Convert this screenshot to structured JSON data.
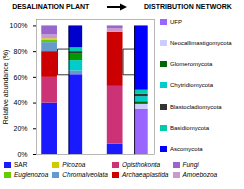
{
  "chart_data": {
    "type": "bar",
    "stacked": true,
    "ylabel": "Relative abundance (%)",
    "ylim": [
      0,
      105
    ],
    "yticks": [
      {
        "value": 0,
        "label": "0%"
      },
      {
        "value": 20,
        "label": "20%"
      },
      {
        "value": 40,
        "label": "40%"
      },
      {
        "value": 60,
        "label": "60%"
      },
      {
        "value": 80,
        "label": "80%"
      },
      {
        "value": 100,
        "label": "100%"
      }
    ],
    "tick_labels": "y",
    "groups": [
      {
        "title": "DESALINATION PLANT",
        "bars": [
          {
            "values": [
              40,
              20,
              20,
              7,
              2,
              1,
              3,
              7
            ],
            "colors": [
              "#1a1aff",
              "#cc3377",
              "#cc0000",
              "#6699cc",
              "#66cc00",
              "#cccc00",
              "#cc99cc",
              "#9966cc"
            ]
          },
          {
            "values": [
              62,
              3,
              8,
              5,
              2,
              3,
              17
            ],
            "colors": [
              "#1a1aff",
              "#6699cc",
              "#00cccc",
              "#009900",
              "#333333",
              "#00ccaa",
              "#0000cc"
            ]
          }
        ],
        "bracket": {
          "y": [
            62,
            82
          ],
          "span": [
            0,
            100
          ]
        }
      },
      {
        "title": "DISTRIBUTION NETWORK",
        "bars": [
          {
            "values": [
              8,
              45,
              42,
              3,
              2
            ],
            "colors": [
              "#1a1aff",
              "#cc3377",
              "#cc0000",
              "#cc99cc",
              "#9966cc"
            ]
          },
          {
            "values": [
              35,
              4,
              2,
              4,
              2,
              3,
              50
            ],
            "colors": [
              "#9966ff",
              "#ccccff",
              "#006600",
              "#00cccc",
              "#333333",
              "#00ccaa",
              "#0000ff"
            ]
          }
        ],
        "bracket": {
          "y": [
            62,
            82
          ],
          "span": [
            0,
            100
          ]
        }
      }
    ],
    "fungi_legend": [
      {
        "label": "Ascomycota",
        "color": "#0000ff"
      },
      {
        "label": "Basidiomycota",
        "color": "#00ccaa"
      },
      {
        "label": "Blastocladiomycota",
        "color": "#333333"
      },
      {
        "label": "Chytridiomycota",
        "color": "#00cccc"
      },
      {
        "label": "Glomeromycota",
        "color": "#006600"
      },
      {
        "label": "Neocallimastigomycota",
        "color": "#ccccff"
      },
      {
        "label": "UFP",
        "color": "#9966ff"
      }
    ],
    "legend_items": [
      {
        "label": "SAR",
        "color": "#1a1aff",
        "italic": false
      },
      {
        "label": "Picozoa",
        "color": "#cccc00",
        "italic": true
      },
      {
        "label": "Opisthokonta",
        "color": "#cc3377",
        "italic": true
      },
      {
        "label": "Fungi",
        "color": "#9966cc",
        "italic": true
      },
      {
        "label": "Euglenozoa",
        "color": "#66cc00",
        "italic": true
      },
      {
        "label": "Chromalveolata",
        "color": "#6699cc",
        "italic": true
      },
      {
        "label": "Archaeaplastida",
        "color": "#cc0000",
        "italic": true
      },
      {
        "label": "Amoebozoa",
        "color": "#cc99cc",
        "italic": true
      }
    ]
  }
}
